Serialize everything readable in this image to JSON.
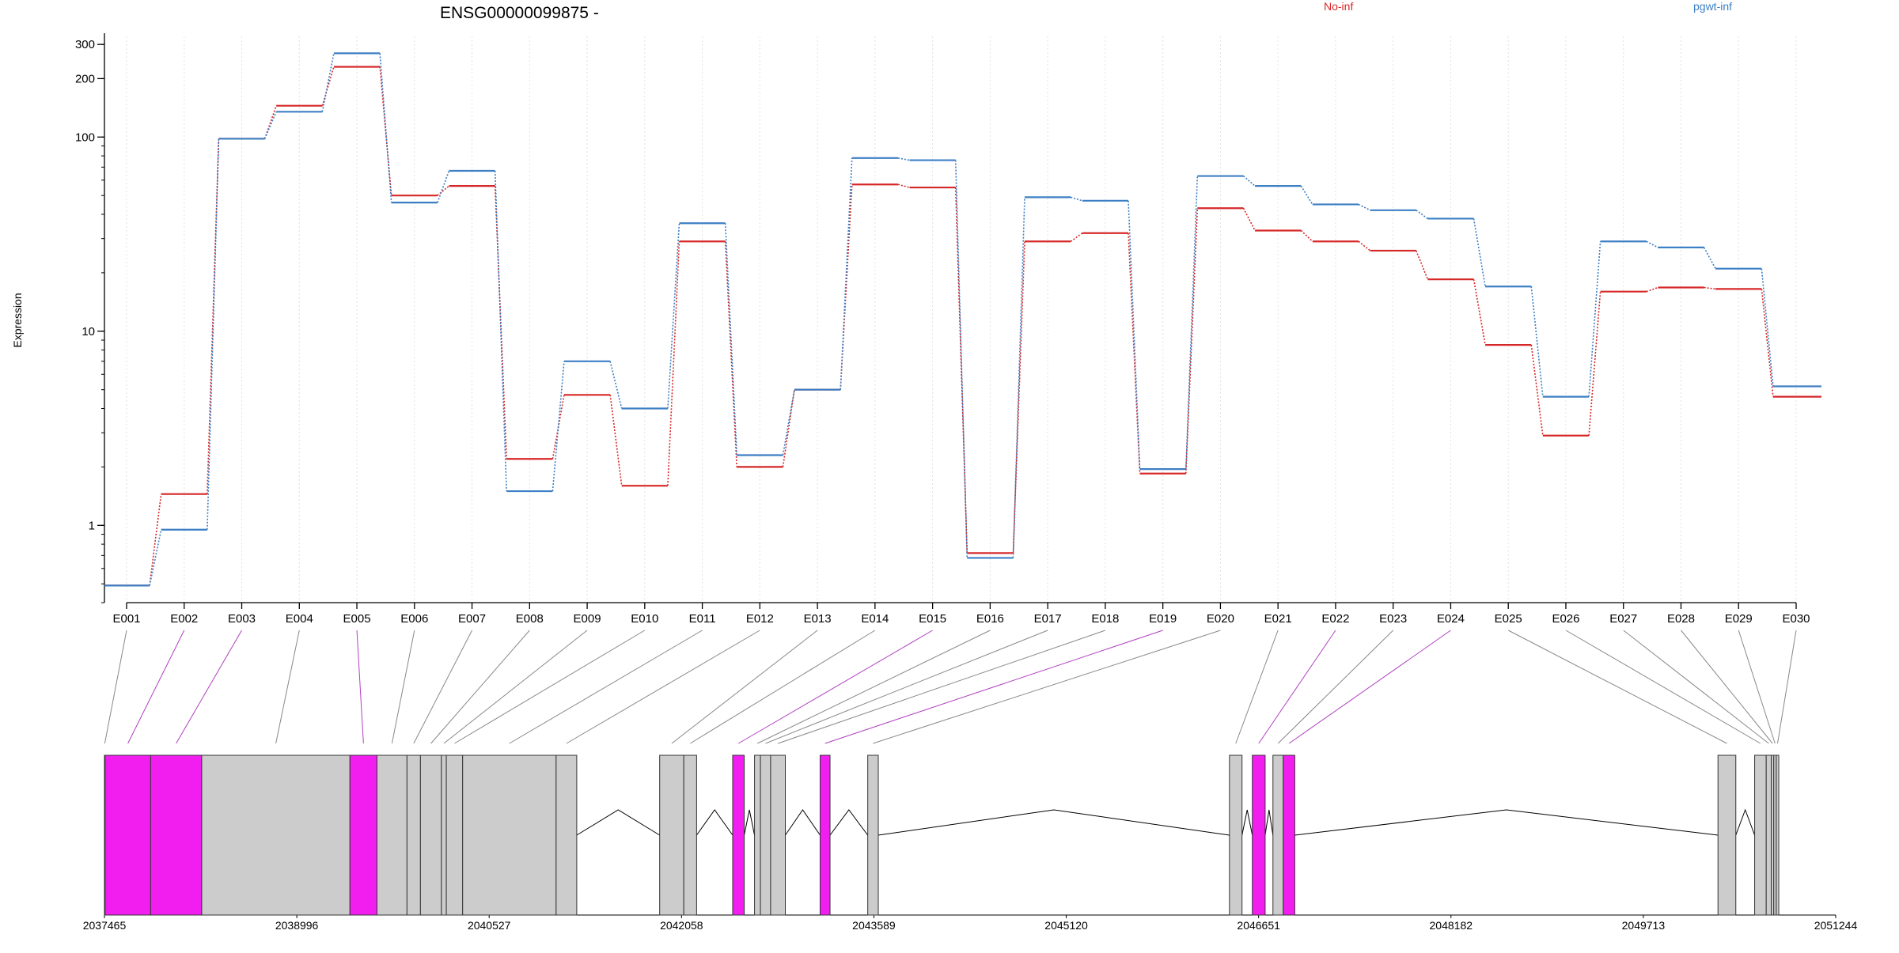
{
  "chart_data": {
    "type": "line",
    "title": "ENSG00000099875 -",
    "ylabel": "Expression",
    "xlabel": "",
    "y_scale": "log",
    "ylim": [
      0.4,
      330
    ],
    "y_ticks": [
      1,
      10,
      100,
      200,
      300
    ],
    "grid": "vertical dotted lines at each exon",
    "legend_position": "top-right",
    "categories": [
      "E001",
      "E002",
      "E003",
      "E004",
      "E005",
      "E006",
      "E007",
      "E008",
      "E009",
      "E010",
      "E011",
      "E012",
      "E013",
      "E014",
      "E015",
      "E016",
      "E017",
      "E018",
      "E019",
      "E020",
      "E021",
      "E022",
      "E023",
      "E024",
      "E025",
      "E026",
      "E027",
      "E028",
      "E029",
      "E030"
    ],
    "series": [
      {
        "name": "No-inf",
        "color": "#d62728",
        "values": [
          0.49,
          1.45,
          98,
          145,
          230,
          50,
          56,
          2.2,
          4.7,
          1.6,
          29,
          2.0,
          5.0,
          57,
          55,
          0.72,
          29,
          32,
          1.85,
          43,
          33,
          29,
          26,
          18.5,
          8.5,
          2.9,
          16,
          16.8,
          16.5,
          4.6
        ]
      },
      {
        "name": "pgwt-inf",
        "color": "#3d7fc4",
        "values": [
          0.49,
          0.95,
          98,
          135,
          270,
          46,
          67,
          1.5,
          7.0,
          4.0,
          36,
          2.3,
          5.0,
          78,
          76,
          0.68,
          49,
          47,
          1.95,
          63,
          56,
          45,
          42,
          38,
          17,
          4.6,
          29,
          27,
          21,
          5.2
        ]
      }
    ],
    "genomic_axis": {
      "tick_labels": [
        "2037465",
        "2038996",
        "2040527",
        "2042058",
        "2043589",
        "2045120",
        "2046651",
        "2048182",
        "2049713",
        "2051244"
      ],
      "tick_values": [
        2037465,
        2038996,
        2040527,
        2042058,
        2043589,
        2045120,
        2046651,
        2048182,
        2049713,
        2051244
      ],
      "range": [
        2037465,
        2051244
      ]
    },
    "exon_models": [
      {
        "exon": "E001",
        "start": 2037465,
        "end": 2037470,
        "highlighted": false
      },
      {
        "exon": "E002",
        "start": 2037470,
        "end": 2037833,
        "highlighted": true
      },
      {
        "exon": "E003",
        "start": 2037833,
        "end": 2038239,
        "highlighted": true
      },
      {
        "exon": "E004",
        "start": 2038239,
        "end": 2039419,
        "highlighted": false
      },
      {
        "exon": "E005",
        "start": 2039419,
        "end": 2039634,
        "highlighted": true
      },
      {
        "exon": "E006",
        "start": 2039634,
        "end": 2039873,
        "highlighted": false
      },
      {
        "exon": "E007",
        "start": 2039873,
        "end": 2039980,
        "highlighted": false
      },
      {
        "exon": "E008",
        "start": 2039980,
        "end": 2040147,
        "highlighted": false
      },
      {
        "exon": "E009",
        "start": 2040147,
        "end": 2040186,
        "highlighted": false
      },
      {
        "exon": "E010",
        "start": 2040186,
        "end": 2040316,
        "highlighted": false
      },
      {
        "exon": "E011",
        "start": 2040316,
        "end": 2041060,
        "highlighted": false
      },
      {
        "exon": "E012",
        "start": 2041060,
        "end": 2041224,
        "highlighted": false
      },
      {
        "exon": "E013",
        "start": 2041884,
        "end": 2042076,
        "highlighted": false
      },
      {
        "exon": "E014",
        "start": 2042076,
        "end": 2042178,
        "highlighted": false
      },
      {
        "exon": "E015",
        "start": 2042465,
        "end": 2042557,
        "highlighted": true
      },
      {
        "exon": "E016",
        "start": 2042639,
        "end": 2042686,
        "highlighted": false
      },
      {
        "exon": "E017",
        "start": 2042686,
        "end": 2042767,
        "highlighted": false
      },
      {
        "exon": "E018",
        "start": 2042767,
        "end": 2042884,
        "highlighted": false
      },
      {
        "exon": "E019",
        "start": 2043161,
        "end": 2043240,
        "highlighted": true
      },
      {
        "exon": "E020",
        "start": 2043540,
        "end": 2043624,
        "highlighted": false
      },
      {
        "exon": "E021",
        "start": 2046419,
        "end": 2046519,
        "highlighted": false
      },
      {
        "exon": "E022",
        "start": 2046601,
        "end": 2046703,
        "highlighted": true
      },
      {
        "exon": "E023",
        "start": 2046765,
        "end": 2046847,
        "highlighted": false
      },
      {
        "exon": "E024",
        "start": 2046847,
        "end": 2046939,
        "highlighted": true
      },
      {
        "exon": "E025",
        "start": 2050307,
        "end": 2050449,
        "highlighted": false
      },
      {
        "exon": "E026",
        "start": 2050599,
        "end": 2050691,
        "highlighted": false
      },
      {
        "exon": "E027",
        "start": 2050691,
        "end": 2050731,
        "highlighted": false
      },
      {
        "exon": "E028",
        "start": 2050731,
        "end": 2050751,
        "highlighted": false
      },
      {
        "exon": "E029",
        "start": 2050751,
        "end": 2050771,
        "highlighted": false
      },
      {
        "exon": "E030",
        "start": 2050771,
        "end": 2050791,
        "highlighted": false
      }
    ]
  }
}
